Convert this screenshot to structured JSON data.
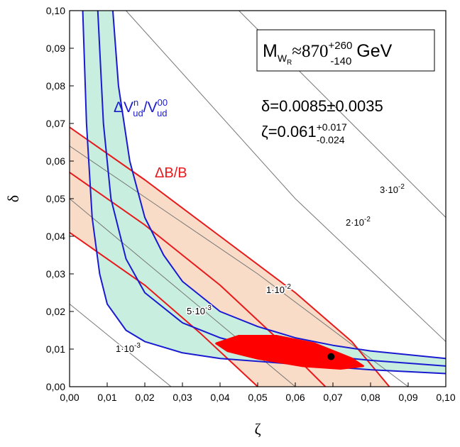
{
  "chart_data": {
    "type": "contour",
    "xlabel": "ζ",
    "ylabel": "δ",
    "xlim": [
      0,
      0.1
    ],
    "ylim": [
      0,
      0.1
    ],
    "xticks": [
      {
        "value": 0,
        "label": "0,00"
      },
      {
        "value": 0.01,
        "label": "0,01"
      },
      {
        "value": 0.02,
        "label": "0,02"
      },
      {
        "value": 0.03,
        "label": "0,03"
      },
      {
        "value": 0.04,
        "label": "0,04"
      },
      {
        "value": 0.05,
        "label": "0,05"
      },
      {
        "value": 0.06,
        "label": "0,06"
      },
      {
        "value": 0.07,
        "label": "0,07"
      },
      {
        "value": 0.08,
        "label": "0,08"
      },
      {
        "value": 0.09,
        "label": "0,09"
      },
      {
        "value": 0.1,
        "label": "0,10"
      }
    ],
    "yticks": [
      {
        "value": 0,
        "label": "0,00"
      },
      {
        "value": 0.01,
        "label": "0,01"
      },
      {
        "value": 0.02,
        "label": "0,02"
      },
      {
        "value": 0.03,
        "label": "0,03"
      },
      {
        "value": 0.04,
        "label": "0,04"
      },
      {
        "value": 0.05,
        "label": "0,05"
      },
      {
        "value": 0.06,
        "label": "0,06"
      },
      {
        "value": 0.07,
        "label": "0,07"
      },
      {
        "value": 0.08,
        "label": "0,08"
      },
      {
        "value": 0.09,
        "label": "0,09"
      },
      {
        "value": 0.1,
        "label": "0,10"
      }
    ],
    "contour_color": "#777777",
    "contours": [
      {
        "text": "1·10",
        "exp": "-3",
        "x": [
          0,
          0.027
        ],
        "y": [
          0.022,
          0
        ]
      },
      {
        "text": "5·10",
        "exp": "-3",
        "x": [
          0,
          0.03,
          0.06
        ],
        "y": [
          0.05,
          0.025,
          0
        ]
      },
      {
        "text": "1·10",
        "exp": "-2",
        "x": [
          0,
          0.05,
          0.09
        ],
        "y": [
          0.064,
          0.03,
          0
        ]
      },
      {
        "text": "2·10",
        "exp": "-2",
        "x": [
          0.015,
          0.06,
          0.1
        ],
        "y": [
          0.1,
          0.05,
          0.012
        ]
      },
      {
        "text": "3·10",
        "exp": "-2",
        "x": [
          0.045,
          0.08,
          0.1
        ],
        "y": [
          0.1,
          0.065,
          0.045
        ]
      }
    ],
    "red_color": "#e8191b",
    "red_fill": "#f9dcc8",
    "red_lines": [
      {
        "x": [
          0,
          0.02,
          0.04,
          0.06,
          0.075,
          0.085
        ],
        "y": [
          0.069,
          0.055,
          0.04,
          0.025,
          0.012,
          0
        ]
      },
      {
        "x": [
          0,
          0.02,
          0.04,
          0.055,
          0.068
        ],
        "y": [
          0.057,
          0.043,
          0.027,
          0.013,
          0
        ]
      },
      {
        "x": [
          0,
          0.02,
          0.035,
          0.05
        ],
        "y": [
          0.041,
          0.027,
          0.014,
          0
        ]
      }
    ],
    "blue_color": "#1a1ad0",
    "blue_fill": "#c8eedf",
    "blue_lines": [
      {
        "x": [
          0.0115,
          0.013,
          0.016,
          0.02,
          0.025,
          0.03,
          0.04,
          0.05,
          0.06,
          0.07,
          0.08,
          0.1
        ],
        "y": [
          0.1,
          0.08,
          0.06,
          0.045,
          0.035,
          0.028,
          0.02,
          0.016,
          0.013,
          0.011,
          0.0095,
          0.0075
        ]
      },
      {
        "x": [
          0.0075,
          0.009,
          0.011,
          0.015,
          0.02,
          0.03,
          0.04,
          0.05,
          0.06,
          0.07,
          0.08,
          0.1
        ],
        "y": [
          0.1,
          0.07,
          0.05,
          0.034,
          0.025,
          0.017,
          0.013,
          0.0105,
          0.009,
          0.008,
          0.007,
          0.0055
        ]
      },
      {
        "x": [
          0.0035,
          0.0045,
          0.006,
          0.008,
          0.01,
          0.015,
          0.02,
          0.03,
          0.04,
          0.06,
          0.08,
          0.1
        ],
        "y": [
          0.1,
          0.07,
          0.045,
          0.03,
          0.022,
          0.015,
          0.012,
          0.009,
          0.0075,
          0.006,
          0.0045,
          0.0035
        ]
      }
    ],
    "region_color": "#ff0000",
    "region": {
      "x": [
        0.039,
        0.045,
        0.055,
        0.065,
        0.075,
        0.078,
        0.072,
        0.062,
        0.05,
        0.042
      ],
      "y": [
        0.0115,
        0.0135,
        0.0135,
        0.0115,
        0.0075,
        0.0055,
        0.0048,
        0.0055,
        0.0075,
        0.0095
      ]
    },
    "point": {
      "x": 0.0695,
      "y": 0.008
    },
    "annotations": {
      "mass": {
        "base": "M",
        "sub": "W",
        "subsub": "R",
        "main": "≈870",
        "sup": "+260",
        "low": "-140",
        "unit": " GeV"
      },
      "delta": "δ=0.0085±0.0035",
      "zeta": {
        "main": "ζ=0.061",
        "sup": "+0.017",
        "low": "-0.024"
      },
      "blue_label": {
        "main": "ΔV",
        "sup1": "n",
        "sub1": "ud",
        "mid": "/V",
        "sup2": "00",
        "sub2": "ud"
      },
      "red_label": "ΔB/B"
    }
  }
}
